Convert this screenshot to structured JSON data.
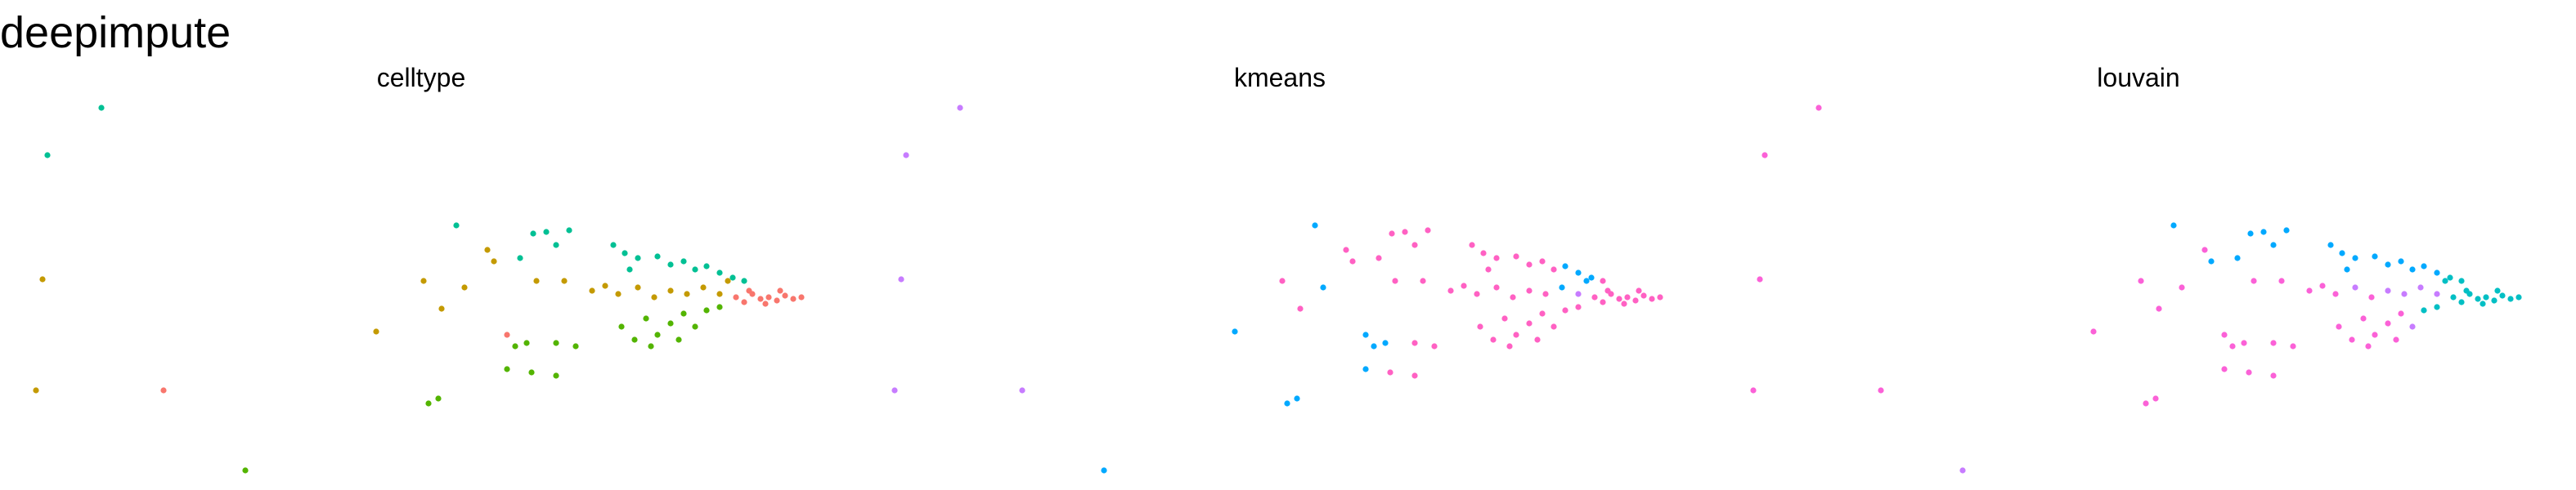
{
  "title": "deepimpute",
  "chart_data": [
    {
      "type": "scatter",
      "title": "celltype",
      "xlim": [
        0,
        520
      ],
      "ylim": [
        300,
        50
      ],
      "x": [
        62,
        29,
        26,
        22,
        100,
        150,
        279,
        230,
        259,
        270,
        284,
        298,
        302,
        318,
        326,
        334,
        348,
        340,
        328,
        345,
        310,
        315,
        322,
        340,
        352,
        310,
        325,
        340,
        262,
        268,
        375,
        382,
        390,
        402,
        410,
        418,
        425,
        432,
        440,
        448,
        455,
        385,
        362,
        370,
        378,
        390,
        400,
        410,
        420,
        430,
        440,
        445,
        450,
        455,
        460,
        465,
        470,
        475,
        480,
        485,
        458,
        468,
        477,
        490,
        380,
        388,
        395,
        402,
        410,
        418,
        425,
        432,
        440,
        398,
        415
      ],
      "values": [
        66,
        95,
        171,
        239,
        239,
        288,
        138,
        203,
        172,
        189,
        176,
        153,
        160,
        158,
        143,
        142,
        141,
        150,
        172,
        172,
        205,
        212,
        210,
        210,
        212,
        226,
        228,
        230,
        247,
        244,
        150,
        155,
        158,
        157,
        162,
        160,
        165,
        163,
        167,
        170,
        172,
        165,
        178,
        175,
        180,
        176,
        182,
        178,
        180,
        176,
        180,
        172,
        182,
        185,
        180,
        183,
        182,
        184,
        181,
        183,
        178,
        186,
        178,
        182,
        200,
        208,
        195,
        205,
        198,
        192,
        200,
        190,
        188,
        212,
        208
      ],
      "colors": [
        "#00C094",
        "#00C094",
        "#C49A00",
        "#C49A00",
        "#F8766D",
        "#53B400",
        "#00C094",
        "#C49A00",
        "#C49A00",
        "#C49A00",
        "#C49A00",
        "#C49A00",
        "#C49A00",
        "#00C094",
        "#00C094",
        "#00C094",
        "#00C094",
        "#00C094",
        "#C49A00",
        "#C49A00",
        "#F8766D",
        "#53B400",
        "#53B400",
        "#53B400",
        "#53B400",
        "#53B400",
        "#53B400",
        "#53B400",
        "#53B400",
        "#53B400",
        "#00C094",
        "#00C094",
        "#00C094",
        "#00C094",
        "#00C094",
        "#00C094",
        "#00C094",
        "#00C094",
        "#00C094",
        "#00C094",
        "#00C094",
        "#00C094",
        "#C49A00",
        "#C49A00",
        "#C49A00",
        "#C49A00",
        "#C49A00",
        "#C49A00",
        "#C49A00",
        "#C49A00",
        "#C49A00",
        "#C49A00",
        "#F8766D",
        "#F8766D",
        "#F8766D",
        "#F8766D",
        "#F8766D",
        "#F8766D",
        "#F8766D",
        "#F8766D",
        "#F8766D",
        "#F8766D",
        "#F8766D",
        "#F8766D",
        "#53B400",
        "#53B400",
        "#53B400",
        "#53B400",
        "#53B400",
        "#53B400",
        "#53B400",
        "#53B400",
        "#53B400",
        "#53B400",
        "#53B400"
      ]
    },
    {
      "type": "scatter",
      "title": "kmeans",
      "xlim": [
        0,
        520
      ],
      "ylim": [
        300,
        50
      ],
      "x": [
        62,
        29,
        26,
        22,
        100,
        150,
        279,
        230,
        259,
        270,
        284,
        298,
        302,
        318,
        326,
        334,
        348,
        340,
        328,
        345,
        310,
        315,
        322,
        340,
        352,
        310,
        325,
        340,
        262,
        268,
        375,
        382,
        390,
        402,
        410,
        418,
        425,
        432,
        440,
        448,
        455,
        385,
        362,
        370,
        378,
        390,
        400,
        410,
        420,
        430,
        440,
        445,
        450,
        455,
        460,
        465,
        470,
        475,
        480,
        485,
        458,
        468,
        477,
        490,
        380,
        388,
        395,
        402,
        410,
        418,
        425,
        432,
        440,
        398,
        415
      ],
      "values": [
        66,
        95,
        171,
        239,
        239,
        288,
        138,
        203,
        172,
        189,
        176,
        153,
        160,
        158,
        143,
        142,
        141,
        150,
        172,
        172,
        205,
        212,
        210,
        210,
        212,
        226,
        228,
        230,
        247,
        244,
        150,
        155,
        158,
        157,
        162,
        160,
        165,
        163,
        167,
        170,
        172,
        165,
        178,
        175,
        180,
        176,
        182,
        178,
        180,
        176,
        180,
        172,
        182,
        185,
        180,
        183,
        182,
        184,
        181,
        183,
        178,
        186,
        178,
        182,
        200,
        208,
        195,
        205,
        198,
        192,
        200,
        190,
        188,
        212,
        208
      ],
      "colors": [
        "#C77CFF",
        "#C77CFF",
        "#C77CFF",
        "#C77CFF",
        "#C77CFF",
        "#00A9FF",
        "#00A9FF",
        "#00A9FF",
        "#FF61C3",
        "#FF61C3",
        "#00A9FF",
        "#FF61C3",
        "#FF61C3",
        "#FF61C3",
        "#FF61C3",
        "#FF61C3",
        "#FF61C3",
        "#FF61C3",
        "#FF61C3",
        "#FF61C3",
        "#00A9FF",
        "#00A9FF",
        "#00A9FF",
        "#FF61C3",
        "#FF61C3",
        "#00A9FF",
        "#FF61C3",
        "#FF61C3",
        "#00A9FF",
        "#00A9FF",
        "#FF61C3",
        "#FF61C3",
        "#FF61C3",
        "#FF61C3",
        "#FF61C3",
        "#FF61C3",
        "#FF61C3",
        "#00A9FF",
        "#00A9FF",
        "#00A9FF",
        "#FF61C3",
        "#FF61C3",
        "#FF61C3",
        "#FF61C3",
        "#FF61C3",
        "#FF61C3",
        "#FF61C3",
        "#FF61C3",
        "#FF61C3",
        "#00A9FF",
        "#C77CFF",
        "#00A9FF",
        "#FF61C3",
        "#FF61C3",
        "#FF61C3",
        "#FF61C3",
        "#FF61C3",
        "#FF61C3",
        "#FF61C3",
        "#FF61C3",
        "#FF61C3",
        "#FF61C3",
        "#FF61C3",
        "#FF61C3",
        "#FF61C3",
        "#FF61C3",
        "#FF61C3",
        "#FF61C3",
        "#FF61C3",
        "#FF61C3",
        "#FF61C3",
        "#FF61C3",
        "#FF61C3",
        "#FF61C3",
        "#FF61C3"
      ]
    },
    {
      "type": "scatter",
      "title": "louvain",
      "xlim": [
        0,
        520
      ],
      "ylim": [
        300,
        50
      ],
      "x": [
        62,
        29,
        26,
        22,
        100,
        150,
        279,
        230,
        259,
        270,
        284,
        298,
        302,
        318,
        326,
        334,
        348,
        340,
        328,
        345,
        310,
        315,
        322,
        340,
        352,
        310,
        325,
        340,
        262,
        268,
        375,
        382,
        390,
        402,
        410,
        418,
        425,
        432,
        440,
        448,
        455,
        385,
        362,
        370,
        378,
        390,
        400,
        410,
        420,
        430,
        440,
        445,
        450,
        455,
        460,
        465,
        470,
        475,
        480,
        485,
        458,
        468,
        477,
        490,
        380,
        388,
        395,
        402,
        410,
        418,
        425,
        432,
        440,
        398,
        415
      ],
      "values": [
        66,
        95,
        171,
        239,
        239,
        288,
        138,
        203,
        172,
        189,
        176,
        153,
        160,
        158,
        143,
        142,
        141,
        150,
        172,
        172,
        205,
        212,
        210,
        210,
        212,
        226,
        228,
        230,
        247,
        244,
        150,
        155,
        158,
        157,
        162,
        160,
        165,
        163,
        167,
        170,
        172,
        165,
        178,
        175,
        180,
        176,
        182,
        178,
        180,
        176,
        180,
        172,
        182,
        185,
        180,
        183,
        182,
        184,
        181,
        183,
        178,
        186,
        178,
        182,
        200,
        208,
        195,
        205,
        198,
        192,
        200,
        190,
        188,
        212,
        208
      ],
      "colors": [
        "#FB61D7",
        "#FB61D7",
        "#FB61D7",
        "#FB61D7",
        "#FB61D7",
        "#C77CFF",
        "#00A9FF",
        "#FB61D7",
        "#FB61D7",
        "#FB61D7",
        "#FB61D7",
        "#FB61D7",
        "#00A9FF",
        "#00A9FF",
        "#00A9FF",
        "#00A9FF",
        "#00A9FF",
        "#00A9FF",
        "#FB61D7",
        "#FB61D7",
        "#FB61D7",
        "#FB61D7",
        "#FB61D7",
        "#FB61D7",
        "#FB61D7",
        "#FB61D7",
        "#FB61D7",
        "#FB61D7",
        "#FB61D7",
        "#FB61D7",
        "#00A9FF",
        "#00A9FF",
        "#00A9FF",
        "#00A9FF",
        "#00A9FF",
        "#00A9FF",
        "#00A9FF",
        "#00A9FF",
        "#00A9FF",
        "#00BFC4",
        "#00BFC4",
        "#00A9FF",
        "#FB61D7",
        "#FB61D7",
        "#FB61D7",
        "#C77CFF",
        "#FB61D7",
        "#C77CFF",
        "#C77CFF",
        "#C77CFF",
        "#C77CFF",
        "#00BFC4",
        "#00BFC4",
        "#00BFC4",
        "#00BFC4",
        "#00BFC4",
        "#00BFC4",
        "#00BFC4",
        "#00BFC4",
        "#00BFC4",
        "#00BFC4",
        "#00BFC4",
        "#00BFC4",
        "#00BFC4",
        "#FB61D7",
        "#FB61D7",
        "#FB61D7",
        "#FB61D7",
        "#FB61D7",
        "#FB61D7",
        "#C77CFF",
        "#00BFC4",
        "#00BFC4",
        "#FB61D7",
        "#FB61D7"
      ]
    }
  ]
}
